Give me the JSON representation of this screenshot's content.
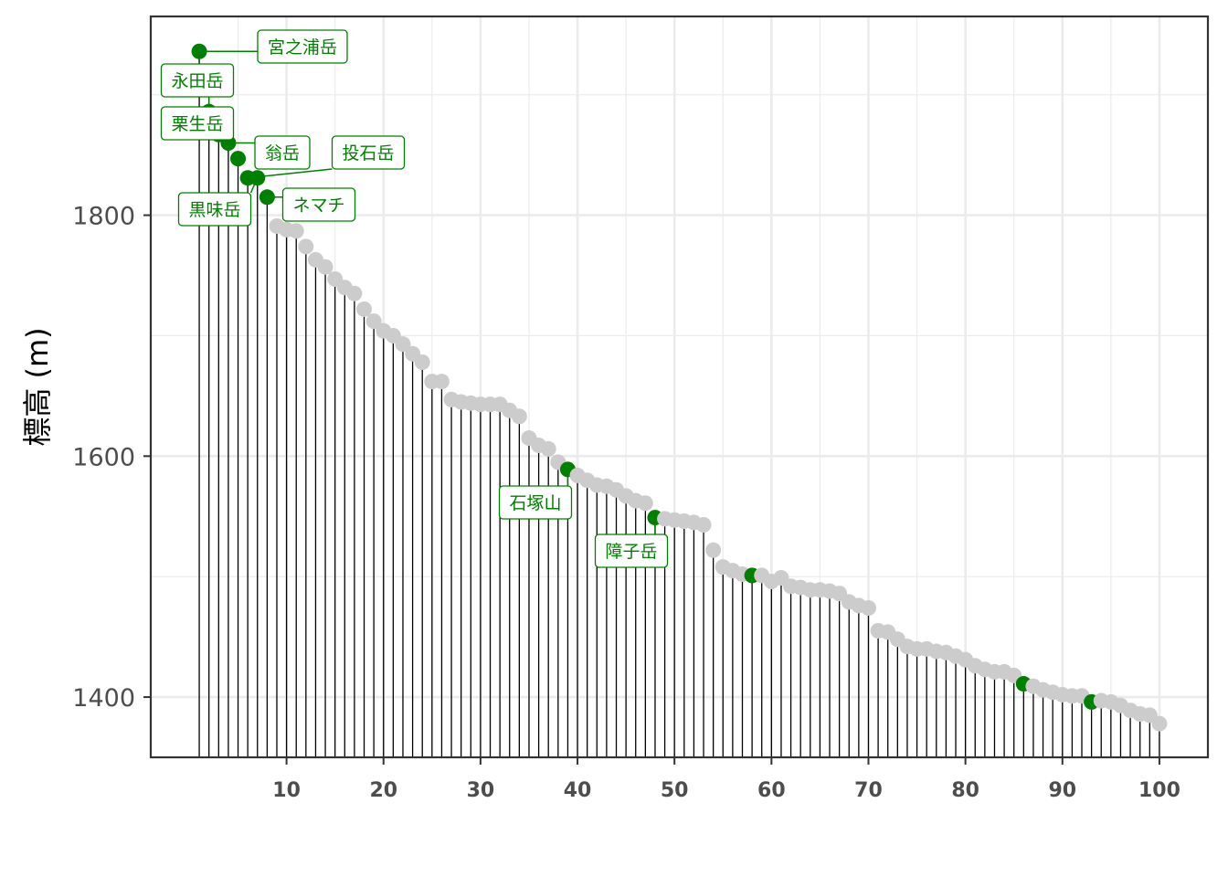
{
  "chart_data": {
    "type": "lollipop",
    "ylabel": "標高 (m)",
    "xlabel": "",
    "xlim": [
      -4,
      105
    ],
    "ylim": [
      1350,
      1965
    ],
    "x_ticks": [
      10,
      20,
      30,
      40,
      50,
      60,
      70,
      80,
      90,
      100
    ],
    "y_ticks": [
      1400,
      1600,
      1800
    ],
    "grid": true,
    "colors": {
      "highlight": "#008000",
      "base": "#cccccc",
      "stem": "#000000",
      "grid": "#ebebeb",
      "panel_border": "#333333"
    },
    "x": [
      1,
      2,
      3,
      4,
      5,
      6,
      7,
      8,
      9,
      10,
      11,
      12,
      13,
      14,
      15,
      16,
      17,
      18,
      19,
      20,
      21,
      22,
      23,
      24,
      25,
      26,
      27,
      28,
      29,
      30,
      31,
      32,
      33,
      34,
      35,
      36,
      37,
      38,
      39,
      40,
      41,
      42,
      43,
      44,
      45,
      46,
      47,
      48,
      49,
      50,
      51,
      52,
      53,
      54,
      55,
      56,
      57,
      58,
      59,
      60,
      61,
      62,
      63,
      64,
      65,
      66,
      67,
      68,
      69,
      70,
      71,
      72,
      73,
      74,
      75,
      76,
      77,
      78,
      79,
      80,
      81,
      82,
      83,
      84,
      85,
      86,
      87,
      88,
      89,
      90,
      91,
      92,
      93,
      94,
      95,
      96,
      97,
      98,
      99,
      100
    ],
    "y": [
      1936,
      1886,
      1867,
      1860,
      1847,
      1831,
      1831,
      1815,
      1791,
      1788,
      1787,
      1774,
      1763,
      1757,
      1747,
      1740,
      1735,
      1722,
      1712,
      1704,
      1700,
      1693,
      1685,
      1678,
      1662,
      1662,
      1647,
      1645,
      1644,
      1643,
      1643,
      1643,
      1638,
      1633,
      1615,
      1609,
      1606,
      1595,
      1589,
      1584,
      1580,
      1576,
      1575,
      1572,
      1567,
      1563,
      1561,
      1549,
      1548,
      1547,
      1546,
      1545,
      1543,
      1522,
      1508,
      1505,
      1502,
      1501,
      1501,
      1496,
      1499,
      1492,
      1491,
      1489,
      1489,
      1488,
      1486,
      1479,
      1476,
      1474,
      1455,
      1454,
      1448,
      1442,
      1440,
      1440,
      1438,
      1437,
      1434,
      1431,
      1426,
      1423,
      1421,
      1421,
      1418,
      1411,
      1409,
      1406,
      1404,
      1402,
      1401,
      1401,
      1396,
      1397,
      1396,
      1393,
      1389,
      1386,
      1385,
      1378
    ],
    "highlighted_x": [
      1,
      2,
      3,
      4,
      5,
      6,
      7,
      8,
      39,
      48,
      58,
      86,
      93
    ],
    "labels": [
      {
        "x": 1,
        "text": "宮之浦岳"
      },
      {
        "x": 2,
        "text": "永田岳"
      },
      {
        "x": 3,
        "text": "栗生岳"
      },
      {
        "x": 4,
        "text": "翁岳"
      },
      {
        "x": 6,
        "text": "投石岳"
      },
      {
        "x": 7,
        "text": "黒味岳"
      },
      {
        "x": 8,
        "text": "ネマチ"
      },
      {
        "x": 39,
        "text": "石塚山"
      },
      {
        "x": 48,
        "text": "障子岳"
      }
    ]
  }
}
